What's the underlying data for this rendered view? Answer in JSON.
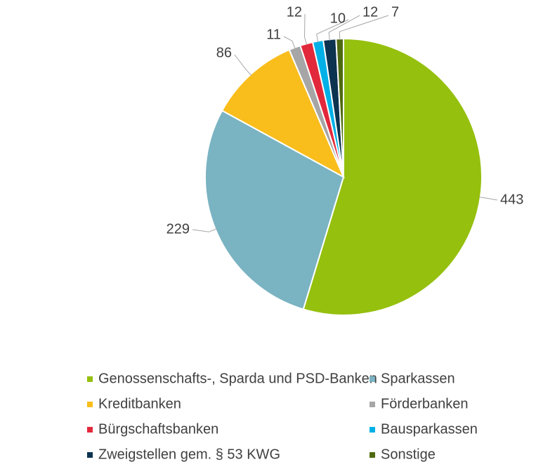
{
  "chart_data": {
    "type": "pie",
    "categories": [
      "Genossenschafts-, Sparda und PSD-Banken",
      "Sparkassen",
      "Kreditbanken",
      "Förderbanken",
      "Bürgschaftsbanken",
      "Bausparkassen",
      "Zweigstellen gem. § 53 KWG",
      "Sonstige"
    ],
    "values": [
      443,
      229,
      86,
      11,
      12,
      10,
      12,
      7
    ],
    "colors": [
      "#95c00e",
      "#7ab3c2",
      "#f9bd1c",
      "#a6a6a6",
      "#e2283b",
      "#00b0e6",
      "#0c3350",
      "#4e6a10"
    ],
    "legend": "bottom"
  }
}
